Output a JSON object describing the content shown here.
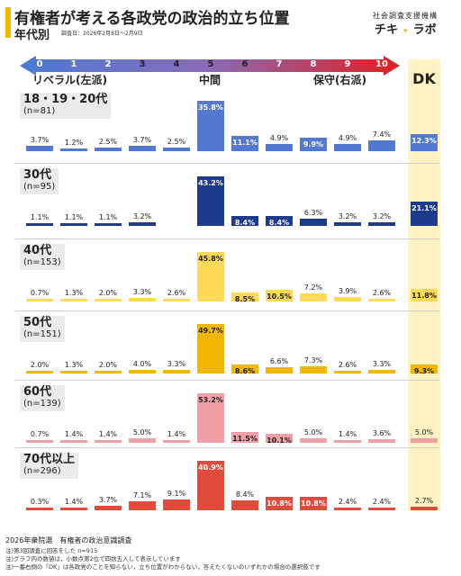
{
  "header": {
    "title": "有権者が考える各政党の政治的立ち位置",
    "subtitle": "年代別",
    "survey_date": "調査日：2026年2月8日〜2月9日",
    "brand_top": "社会調査支援機構",
    "brand_name": "チキ",
    "brand_sparkle": "✦",
    "brand_name2": "ラボ"
  },
  "scale": {
    "labels": [
      "0",
      "1",
      "2",
      "3",
      "4",
      "5",
      "6",
      "7",
      "8",
      "9",
      "10"
    ],
    "left_label": "リベラル(左派)",
    "center_label": "中間",
    "right_label": "保守(右派)",
    "dk_label": "DK",
    "gradient_colors": [
      "#4a7bd6",
      "#8a6ab5",
      "#e02020"
    ]
  },
  "chart_data": {
    "type": "bar",
    "title": "有権者が考える各政党の政治的立ち位置",
    "subtitle": "年代別",
    "categories": [
      "0",
      "1",
      "2",
      "3",
      "4",
      "5",
      "6",
      "7",
      "8",
      "9",
      "10",
      "DK"
    ],
    "unit": "%",
    "series": [
      {
        "name": "18・19・20代",
        "n": "(n=81)",
        "color": "#5578d0",
        "highlight": [
          5,
          6,
          8,
          11
        ],
        "values": [
          3.7,
          1.2,
          2.5,
          3.7,
          2.5,
          35.8,
          11.1,
          4.9,
          9.9,
          4.9,
          7.4,
          12.3
        ]
      },
      {
        "name": "30代",
        "n": "(n=95)",
        "color": "#1e3a8c",
        "highlight": [
          5,
          6,
          7,
          11
        ],
        "values": [
          1.1,
          1.1,
          1.1,
          3.2,
          0,
          43.2,
          8.4,
          8.4,
          6.3,
          3.2,
          3.2,
          21.1
        ]
      },
      {
        "name": "40代",
        "n": "(n=153)",
        "color": "#ffd95a",
        "highlight": [
          5,
          6,
          7,
          11
        ],
        "values": [
          0.7,
          1.3,
          2.0,
          3.3,
          2.6,
          45.8,
          8.5,
          10.5,
          7.2,
          3.9,
          2.6,
          11.8
        ]
      },
      {
        "name": "50代",
        "n": "(n=151)",
        "color": "#f2b705",
        "highlight": [
          5,
          6,
          11
        ],
        "values": [
          2.0,
          1.3,
          2.0,
          4.0,
          3.3,
          49.7,
          8.6,
          6.6,
          7.3,
          2.6,
          3.3,
          9.3
        ]
      },
      {
        "name": "60代",
        "n": "(n=139)",
        "color": "#f0a0a6",
        "highlight": [
          5,
          6,
          7
        ],
        "values": [
          0.7,
          1.4,
          1.4,
          5.0,
          1.4,
          53.2,
          11.5,
          10.1,
          5.0,
          1.4,
          3.6,
          5.0
        ]
      },
      {
        "name": "70代以上",
        "n": "(n=296)",
        "color": "#e04c3c",
        "highlight": [
          5,
          7,
          8
        ],
        "values": [
          0.3,
          1.4,
          3.7,
          7.1,
          9.1,
          40.9,
          8.4,
          10.8,
          10.8,
          2.4,
          2.4,
          2.7
        ]
      }
    ]
  },
  "footer": {
    "main": "2026年衆院選　有権者の政治意識調査",
    "notes": [
      "注)第3回調査に回答をした n=915",
      "注)グラフ内の数値は，小数点第2位で四捨五入して表示しています",
      "注)一番右側の「DK」は各政党のことを知らない，立ち位置がわからない，答えたくないのいずれかの場合の選択肢です"
    ]
  }
}
